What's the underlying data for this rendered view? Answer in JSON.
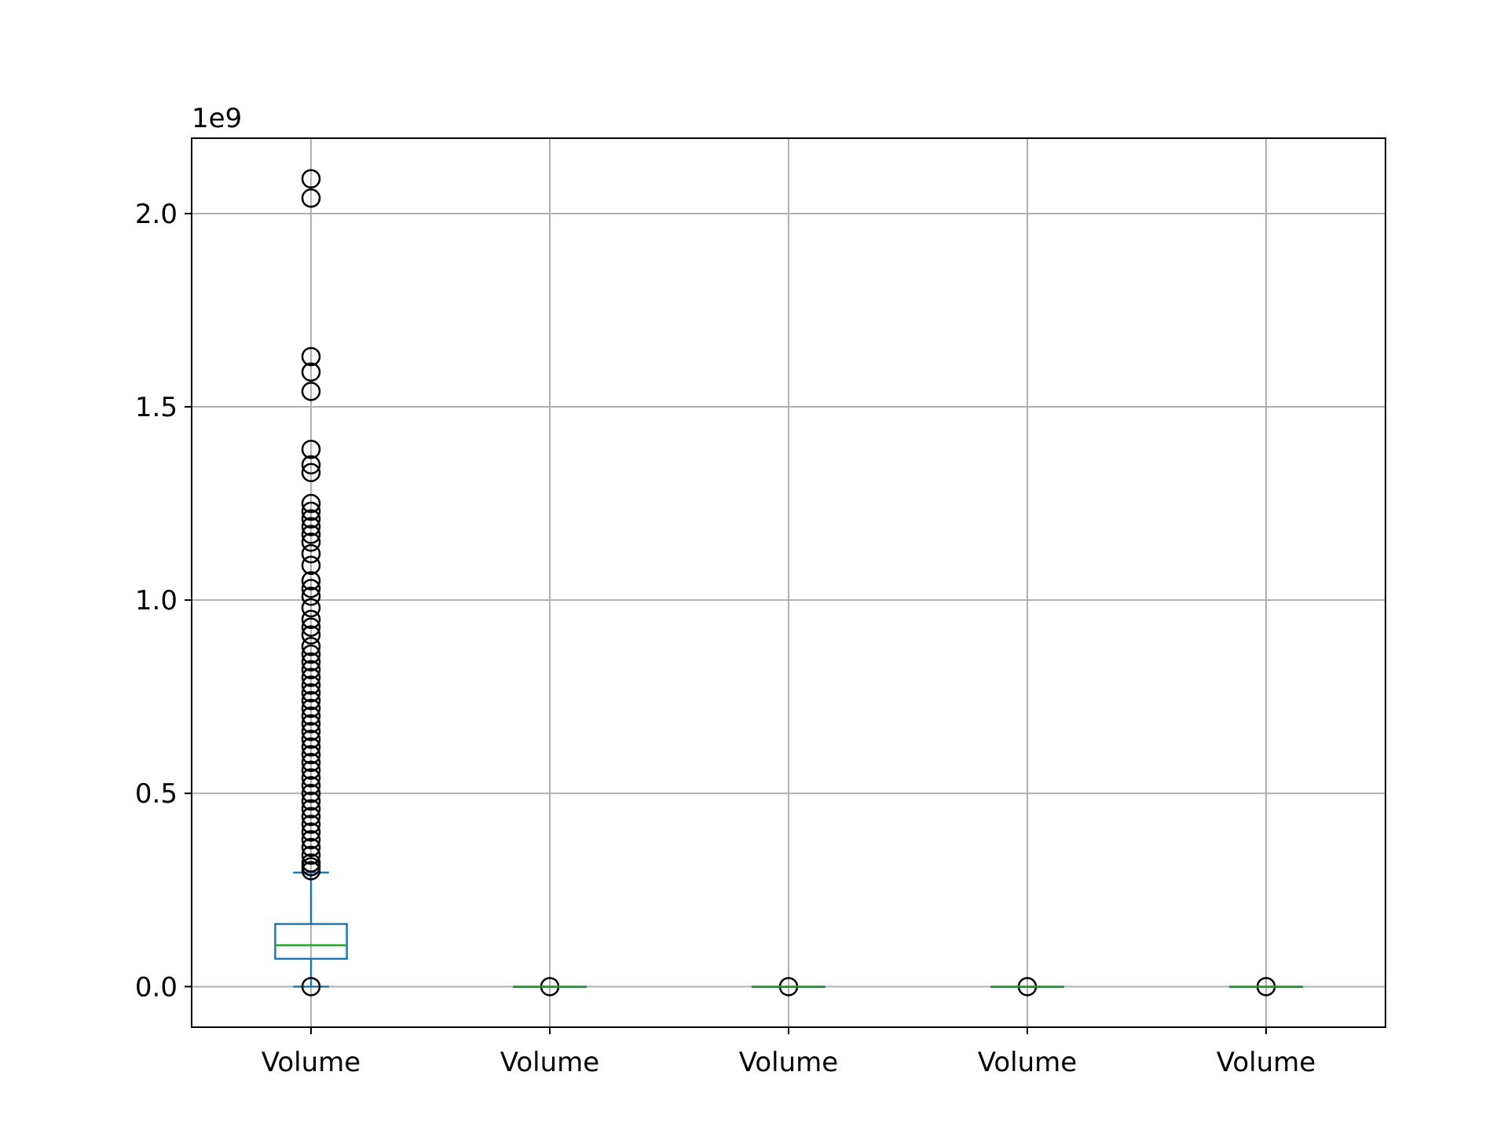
{
  "chart_data": {
    "type": "box",
    "title": "",
    "xlabel": "",
    "ylabel": "",
    "y_offset_label": "1e9",
    "ylim": [
      -0.105,
      2.195
    ],
    "yticks": [
      0.0,
      0.5,
      1.0,
      1.5,
      2.0
    ],
    "ytick_labels": [
      "0.0",
      "0.5",
      "1.0",
      "1.5",
      "2.0"
    ],
    "grid": true,
    "categories": [
      "Volume",
      "Volume",
      "Volume",
      "Volume",
      "Volume"
    ],
    "boxes": [
      {
        "label": "Volume",
        "min": 0.0,
        "q1": 0.072,
        "median": 0.107,
        "q3": 0.162,
        "max": 0.295,
        "outliers": [
          0.0,
          0.3,
          0.31,
          0.32,
          0.34,
          0.36,
          0.38,
          0.4,
          0.42,
          0.44,
          0.46,
          0.48,
          0.5,
          0.52,
          0.54,
          0.56,
          0.58,
          0.6,
          0.62,
          0.64,
          0.66,
          0.68,
          0.7,
          0.72,
          0.74,
          0.76,
          0.78,
          0.8,
          0.82,
          0.84,
          0.86,
          0.88,
          0.91,
          0.93,
          0.95,
          0.98,
          1.01,
          1.03,
          1.05,
          1.09,
          1.12,
          1.15,
          1.17,
          1.19,
          1.21,
          1.23,
          1.25,
          1.33,
          1.35,
          1.39,
          1.54,
          1.59,
          1.63,
          2.04,
          2.09
        ]
      },
      {
        "label": "Volume",
        "min": 0.0,
        "q1": 0.0,
        "median": 0.0,
        "q3": 0.0,
        "max": 0.0,
        "outliers": [
          0.0
        ]
      },
      {
        "label": "Volume",
        "min": 0.0,
        "q1": 0.0,
        "median": 0.0,
        "q3": 0.0,
        "max": 0.0,
        "outliers": [
          0.0
        ]
      },
      {
        "label": "Volume",
        "min": 0.0,
        "q1": 0.0,
        "median": 0.0,
        "q3": 0.0,
        "max": 0.0,
        "outliers": [
          0.0
        ]
      },
      {
        "label": "Volume",
        "min": 0.0,
        "q1": 0.0,
        "median": 0.0,
        "q3": 0.0,
        "max": 0.0,
        "outliers": [
          0.0
        ]
      }
    ],
    "colors": {
      "box": "#1f77b4",
      "median": "#2ca02c",
      "outlier_edge": "#000000",
      "grid": "#b0b0b0"
    }
  }
}
